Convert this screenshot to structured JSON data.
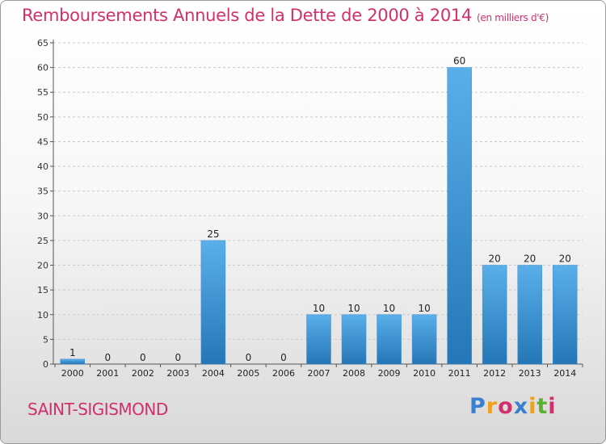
{
  "title": "Remboursements Annuels de la Dette de 2000 à 2014",
  "subtitle": "(en milliers d'€)",
  "place": "SAINT-SIGISMOND",
  "logo": {
    "text": "Proxiti",
    "letters": [
      {
        "ch": "P",
        "color": "#3a7fd0"
      },
      {
        "ch": "r",
        "color": "#f0a020"
      },
      {
        "ch": "o",
        "color": "#d0306c"
      },
      {
        "ch": "x",
        "color": "#3a7fd0"
      },
      {
        "ch": "i",
        "color": "#f0a020"
      },
      {
        "ch": "t",
        "color": "#5cb030"
      },
      {
        "ch": "i",
        "color": "#d0306c"
      }
    ]
  },
  "colors": {
    "title": "#d0306c",
    "bar_top": "#5aafea",
    "bar_bottom": "#2576b6",
    "grid": "#c8c8c8"
  },
  "chart_data": {
    "type": "bar",
    "title": "Remboursements Annuels de la Dette de 2000 à 2014",
    "subtitle": "(en milliers d'€)",
    "categories": [
      "2000",
      "2001",
      "2002",
      "2003",
      "2004",
      "2005",
      "2006",
      "2007",
      "2008",
      "2009",
      "2010",
      "2011",
      "2012",
      "2013",
      "2014"
    ],
    "values": [
      1,
      0,
      0,
      0,
      25,
      0,
      0,
      10,
      10,
      10,
      10,
      60,
      20,
      20,
      20
    ],
    "ylim": [
      0,
      65
    ],
    "yticks": [
      0,
      5,
      10,
      15,
      20,
      25,
      30,
      35,
      40,
      45,
      50,
      55,
      60,
      65
    ],
    "grid": "horizontal dashed",
    "xlabel": "",
    "ylabel": ""
  }
}
